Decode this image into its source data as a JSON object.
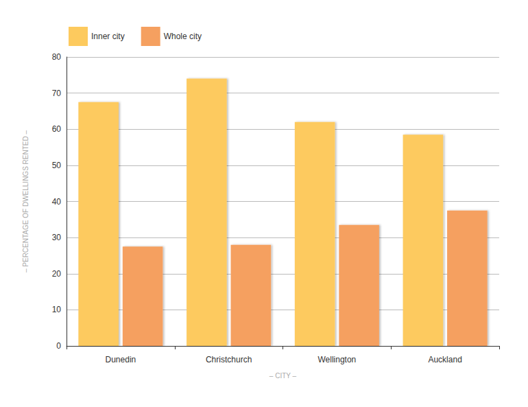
{
  "chart_data": {
    "type": "bar",
    "x_label": "– CITY –",
    "y_label": "– PERCENTAGE OF DWELLINGS RENTED –",
    "categories": [
      "Dunedin",
      "Christchurch",
      "Wellington",
      "Auckland"
    ],
    "series": [
      {
        "name": "Inner city",
        "color": "#fdca5e",
        "values": [
          67.5,
          74,
          62,
          58.5
        ]
      },
      {
        "name": "Whole city",
        "color": "#f5a060",
        "values": [
          27.5,
          28,
          33.5,
          37.5
        ]
      }
    ],
    "ylim": [
      0,
      80
    ],
    "yticks": [
      0,
      10,
      20,
      30,
      40,
      50,
      60,
      70,
      80
    ],
    "grid": true,
    "legend": "top-left",
    "data_labels": false
  }
}
